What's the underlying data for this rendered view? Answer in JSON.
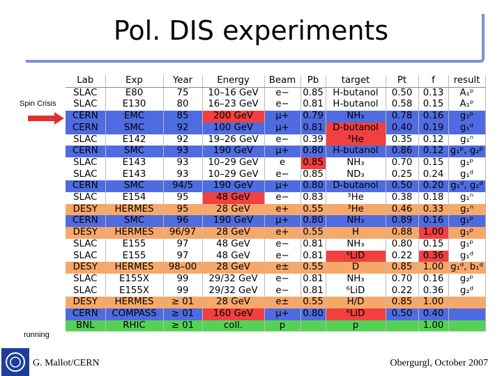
{
  "slide": {
    "title": "Pol. DIS experiments",
    "left_labels": {
      "spin_crisis": "Spin Crisis",
      "running": "running"
    },
    "footer_left": "G. Mallot/CERN",
    "footer_right": "Obergurgl,  October 2007"
  },
  "colors": {
    "cern": "#4f6be0",
    "desy": "#f6a86a",
    "bnl": "#55d155",
    "highlight": "#f04040",
    "title_frame": "#7b8fd6",
    "arrow": "#e03030"
  },
  "table": {
    "headers": [
      "Lab",
      "Exp",
      "Year",
      "Energy",
      "Beam",
      "Pb",
      "target",
      "Pt",
      "f",
      "result"
    ],
    "rows": [
      {
        "group": "slac",
        "cells": [
          "SLAC",
          "E80",
          "75",
          "10–16 GeV",
          "e−",
          "0.85",
          "H-butanol",
          "0.50",
          "0.13",
          "A₁ᵖ"
        ]
      },
      {
        "group": "slac",
        "cells": [
          "SLAC",
          "E130",
          "80",
          "16–23 GeV",
          "e−",
          "0.81",
          "H-butanol",
          "0.58",
          "0.15",
          "A₁ᵖ"
        ]
      },
      {
        "group": "cern",
        "cells": [
          "CERN",
          "EMC",
          "85",
          "200 GeV",
          "μ+",
          "0.79",
          "NH₃",
          "0.78",
          "0.16",
          "g₁ᵖ"
        ],
        "hl": [
          3
        ]
      },
      {
        "group": "cern",
        "cells": [
          "CERN",
          "SMC",
          "92",
          "100 GeV",
          "μ+",
          "0.81",
          "D-butanol",
          "0.40",
          "0.19",
          "g₁ᵈ"
        ],
        "hl": [
          6
        ]
      },
      {
        "group": "slac",
        "cells": [
          "SLAC",
          "E142",
          "92",
          "19–26 GeV",
          "e−",
          "0.39",
          "³He",
          "0.35",
          "0.12",
          "g₁ⁿ"
        ],
        "hl": [
          6
        ]
      },
      {
        "group": "cern",
        "cells": [
          "CERN",
          "SMC",
          "93",
          "190 GeV",
          "μ+",
          "0.80",
          "H-butanol",
          "0.86",
          "0.12",
          "g₁ᵖ, g₂ᵖ"
        ]
      },
      {
        "group": "slac",
        "cells": [
          "SLAC",
          "E143",
          "93",
          "10–29 GeV",
          "e",
          "0.85",
          "NH₃",
          "0.70",
          "0.15",
          "g₁ᵖ"
        ],
        "hl": [
          5
        ]
      },
      {
        "group": "slac",
        "cells": [
          "SLAC",
          "E143",
          "93",
          "10–29 GeV",
          "e−",
          "0.85",
          "ND₃",
          "0.25",
          "0.24",
          "g₁ᵈ"
        ]
      },
      {
        "group": "cern",
        "cells": [
          "CERN",
          "SMC",
          "94/5",
          "190 GeV",
          "μ+",
          "0.80",
          "D-butanol",
          "0.50",
          "0.20",
          "g₁ᵈ, g₂ᵈ"
        ]
      },
      {
        "group": "slac",
        "cells": [
          "SLAC",
          "E154",
          "95",
          "48 GeV",
          "e−",
          "0.83",
          "³He",
          "0.38",
          "0.18",
          "g₁ⁿ"
        ],
        "hl": [
          3
        ]
      },
      {
        "group": "desy",
        "cells": [
          "DESY",
          "HERMES",
          "95",
          "28 GeV",
          "e+",
          "0.55",
          "³He",
          "0.46",
          "0.33",
          "g₁ⁿ"
        ]
      },
      {
        "group": "cern",
        "cells": [
          "CERN",
          "SMC",
          "96",
          "190 GeV",
          "μ+",
          "0.80",
          "NH₃",
          "0.89",
          "0.16",
          "g₁ᵖ"
        ]
      },
      {
        "group": "desy",
        "cells": [
          "DESY",
          "HERMES",
          "96/97",
          "28 GeV",
          "e+",
          "0.55",
          "H",
          "0.88",
          "1.00",
          "g₁ᵖ"
        ],
        "hl": [
          8
        ]
      },
      {
        "group": "slac",
        "cells": [
          "SLAC",
          "E155",
          "97",
          "48 GeV",
          "e−",
          "0.81",
          "NH₃",
          "0.80",
          "0.15",
          "g₁ᵖ"
        ]
      },
      {
        "group": "slac",
        "cells": [
          "SLAC",
          "E155",
          "97",
          "48 GeV",
          "e−",
          "0.81",
          "⁶LiD",
          "0.22",
          "0.36",
          "g₁ᵈ"
        ],
        "hl": [
          6,
          8
        ]
      },
      {
        "group": "desy",
        "cells": [
          "DESY",
          "HERMES",
          "98–00",
          "28 GeV",
          "e±",
          "0.55",
          "D",
          "0.85",
          "1.00",
          "g₁ᵈ, b₁ᵈ"
        ]
      },
      {
        "group": "slac",
        "cells": [
          "SLAC",
          "E155X",
          "99",
          "29/32 GeV",
          "e−",
          "0.81",
          "NH₃",
          "0.70",
          "0.16",
          "g₂ᵖ"
        ]
      },
      {
        "group": "slac",
        "cells": [
          "SLAC",
          "E155X",
          "99",
          "29/32 GeV",
          "e−",
          "0.81",
          "⁶LiD",
          "0.22",
          "0.36",
          "g₂ᵈ"
        ]
      },
      {
        "group": "desy",
        "cells": [
          "DESY",
          "HERMES",
          "≥ 01",
          "28 GeV",
          "e±",
          "0.55",
          "H/D",
          "0.85",
          "1.00",
          ""
        ]
      },
      {
        "group": "cern",
        "cells": [
          "CERN",
          "COMPASS",
          "≥ 01",
          "160 GeV",
          "μ+",
          "0.80",
          "⁶LiD",
          "0.50",
          "0.40",
          ""
        ],
        "hl": [
          3,
          6
        ]
      },
      {
        "group": "bnl",
        "cells": [
          "BNL",
          "RHIC",
          "≥ 01",
          "coll.",
          "p",
          "",
          "p",
          "",
          "1.00",
          ""
        ]
      }
    ]
  }
}
